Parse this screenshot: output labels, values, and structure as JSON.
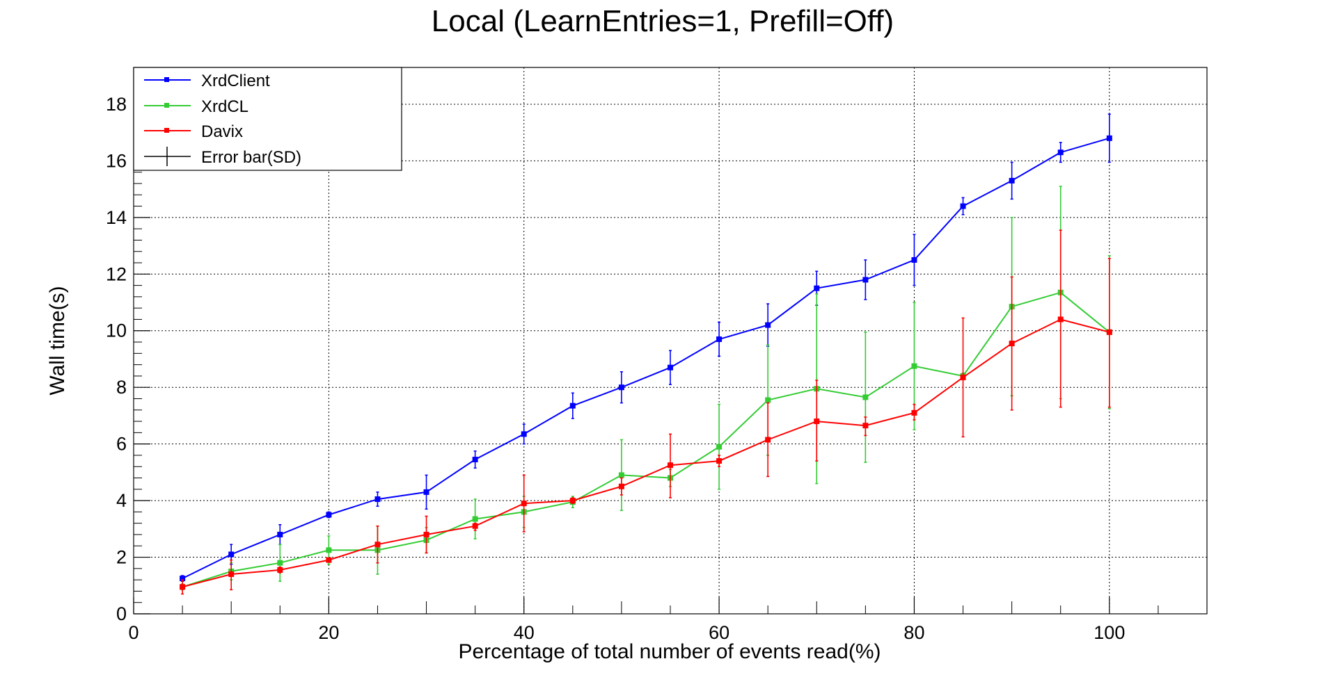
{
  "chart_data": {
    "type": "line",
    "title": "Local (LearnEntries=1, Prefill=Off)",
    "xlabel": "Percentage of total number of events read(%)",
    "ylabel": "Wall time(s)",
    "xlim": [
      0,
      110
    ],
    "ylim": [
      0,
      19.3
    ],
    "x_ticks": [
      "0",
      "20",
      "40",
      "60",
      "80",
      "100"
    ],
    "y_ticks": [
      "0",
      "2",
      "4",
      "6",
      "8",
      "10",
      "12",
      "14",
      "16",
      "18"
    ],
    "grid": true,
    "legend_position": "top-left",
    "x": [
      5,
      10,
      15,
      20,
      25,
      30,
      35,
      40,
      45,
      50,
      55,
      60,
      65,
      70,
      75,
      80,
      85,
      90,
      95,
      100
    ],
    "series": [
      {
        "name": "XrdClient",
        "color": "#0000ff",
        "values": [
          1.25,
          2.1,
          2.8,
          3.5,
          4.05,
          4.3,
          5.45,
          6.35,
          7.35,
          8.0,
          8.7,
          9.7,
          10.2,
          11.5,
          11.8,
          12.5,
          14.4,
          15.3,
          16.3,
          16.8
        ],
        "errors": [
          0.1,
          0.35,
          0.35,
          0.1,
          0.25,
          0.6,
          0.3,
          0.35,
          0.45,
          0.55,
          0.6,
          0.6,
          0.75,
          0.6,
          0.7,
          0.9,
          0.3,
          0.65,
          0.35,
          0.85
        ]
      },
      {
        "name": "XrdCL",
        "color": "#33cc33",
        "values": [
          0.95,
          1.5,
          1.8,
          2.25,
          2.25,
          2.6,
          3.35,
          3.6,
          3.95,
          4.9,
          4.8,
          5.9,
          7.55,
          7.95,
          7.65,
          8.75,
          8.4,
          10.85,
          11.35,
          9.95
        ],
        "errors": [
          0.1,
          0.3,
          0.65,
          0.5,
          0.85,
          0.45,
          0.7,
          0.55,
          0.2,
          1.25,
          0.3,
          1.5,
          1.95,
          3.35,
          2.3,
          2.25,
          0.1,
          3.15,
          3.75,
          2.7
        ]
      },
      {
        "name": "Davix",
        "color": "#ff0000",
        "values": [
          0.95,
          1.4,
          1.55,
          1.9,
          2.45,
          2.8,
          3.1,
          3.9,
          4.0,
          4.5,
          5.25,
          5.4,
          6.15,
          6.8,
          6.65,
          7.1,
          8.35,
          9.55,
          10.4,
          9.95
        ]
      }
    ],
    "davix_error_intervals": [
      [
        0.7,
        1.2
      ],
      [
        0.85,
        1.9
      ],
      [
        1.45,
        1.65
      ],
      [
        1.85,
        1.95
      ],
      [
        1.8,
        3.1
      ],
      [
        2.15,
        3.45
      ],
      [
        2.95,
        3.2
      ],
      [
        2.9,
        4.9
      ],
      [
        3.9,
        4.1
      ],
      [
        4.2,
        4.8
      ],
      [
        4.1,
        6.35
      ],
      [
        5.2,
        5.6
      ],
      [
        4.85,
        7.45
      ],
      [
        5.4,
        8.25
      ],
      [
        6.3,
        6.95
      ],
      [
        6.85,
        7.4
      ],
      [
        6.25,
        10.45
      ],
      [
        7.2,
        11.9
      ],
      [
        7.3,
        13.55
      ],
      [
        7.3,
        12.55
      ]
    ],
    "legend": [
      {
        "label": "XrdClient",
        "color": "#0000ff"
      },
      {
        "label": "XrdCL",
        "color": "#33cc33"
      },
      {
        "label": "Davix",
        "color": "#ff0000"
      },
      {
        "label": "Error bar(SD)",
        "color": "#000000"
      }
    ]
  }
}
